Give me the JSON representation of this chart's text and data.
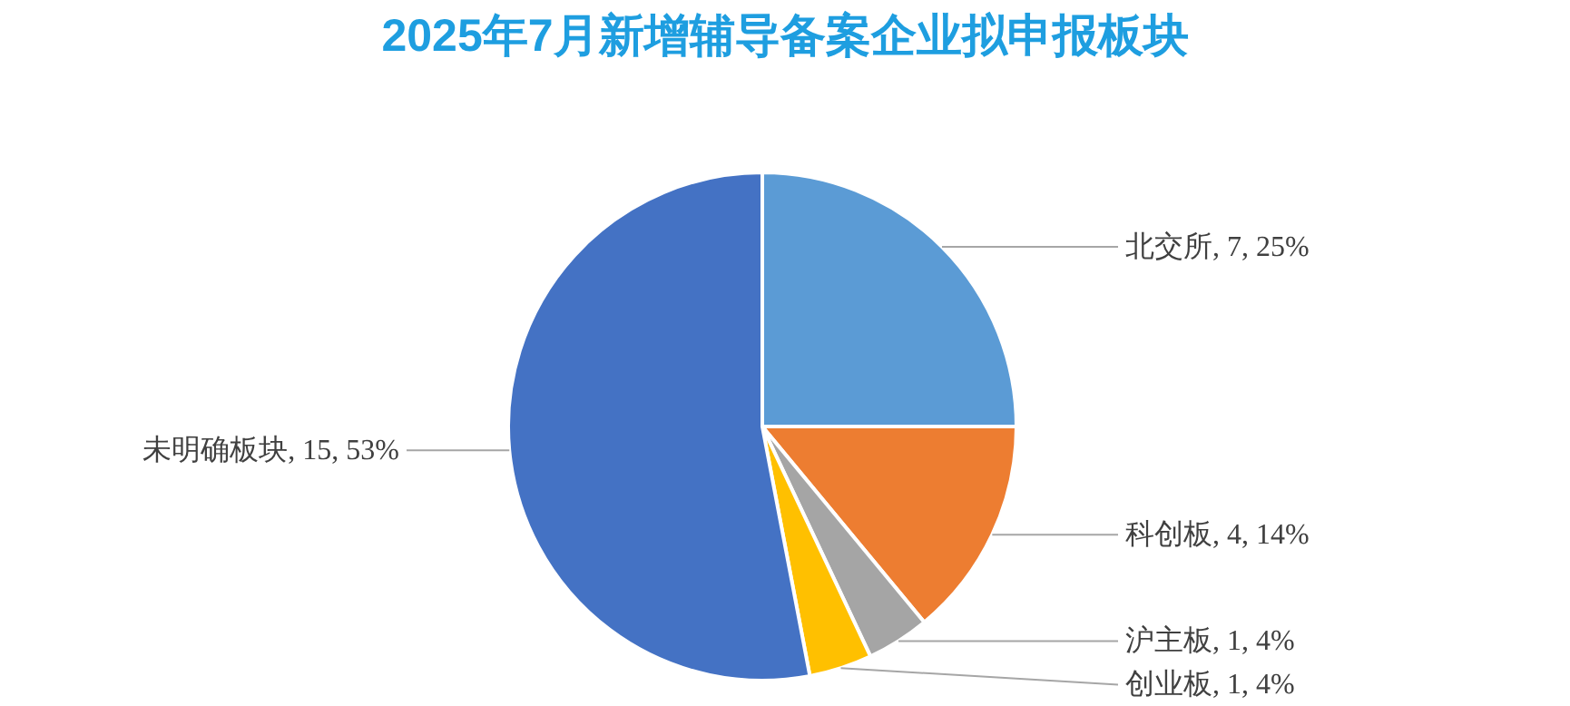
{
  "chart_data": {
    "type": "pie",
    "title": "2025年7月新增辅导备案企业拟申报板块",
    "categories": [
      "北交所, 7, 25%",
      "科创板, 4, 14%",
      "沪主板, 1, 4%",
      "创业板, 1, 4%",
      "未明确板块, 15, 53%"
    ],
    "values": [
      25,
      14,
      4,
      4,
      53
    ],
    "colors": [
      "#5b9bd5",
      "#ed7d31",
      "#a5a5a5",
      "#ffc000",
      "#4472c4"
    ]
  }
}
